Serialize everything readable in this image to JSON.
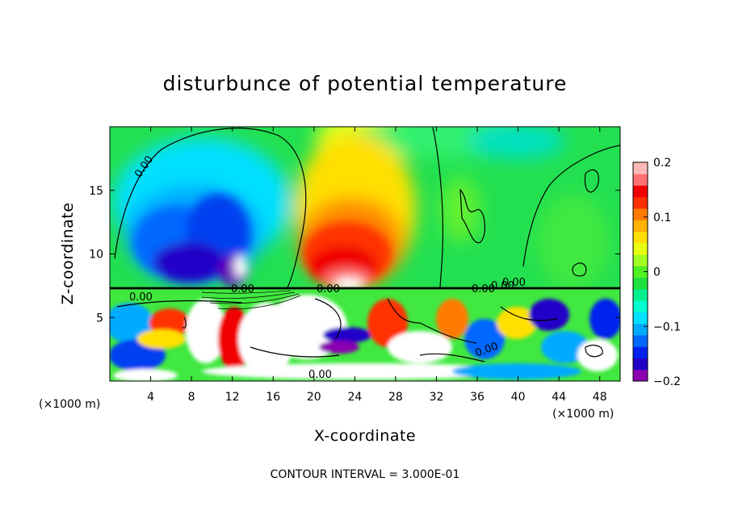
{
  "chart_data": {
    "type": "heatmap",
    "title": "disturbunce of potential temperature",
    "xlabel": "X-coordinate",
    "ylabel": "Z-coordinate",
    "x_unit_left": "(×1000 m)",
    "x_unit_right": "(×1000 m)",
    "xlim": [
      0,
      50
    ],
    "ylim": [
      0,
      20
    ],
    "x_ticks": [
      4,
      8,
      12,
      16,
      20,
      24,
      28,
      32,
      36,
      40,
      44,
      48
    ],
    "y_ticks": [
      5,
      10,
      15
    ],
    "colorbar": {
      "ticks": [
        0.2,
        0.1,
        0,
        -0.1,
        -0.2
      ],
      "tick_labels": [
        "0.2",
        "0.1",
        "0",
        "−0.1",
        "−0.2"
      ],
      "min": -0.2,
      "max": 0.2,
      "colors": [
        "#8a00b0",
        "#2200c8",
        "#0022ee",
        "#0068ff",
        "#00aaff",
        "#00e0ff",
        "#00ffd0",
        "#00f090",
        "#20e040",
        "#50f020",
        "#a0ff20",
        "#e8ff10",
        "#ffe000",
        "#ffb000",
        "#ff7a00",
        "#ff3000",
        "#f00000",
        "#ff7070",
        "#ffb8b8"
      ]
    },
    "contour_labels": [
      "0.00",
      "0.00",
      "0.00",
      "0.00",
      "0.00",
      "0.00",
      "0.00",
      "0.00",
      "0.00"
    ],
    "field_features": [
      {
        "x": 12,
        "z": 10,
        "value": -0.18
      },
      {
        "x": 9,
        "z": 13,
        "value": -0.12
      },
      {
        "x": 23,
        "z": 11,
        "value": 0.17
      },
      {
        "x": 22,
        "z": 17,
        "value": 0.08
      },
      {
        "x": 28,
        "z": 17,
        "value": 0.04
      },
      {
        "x": 40,
        "z": 18,
        "value": -0.02
      },
      {
        "x": 44,
        "z": 12,
        "value": 0.01
      }
    ],
    "footer": "CONTOUR INTERVAL = 3.000E-01"
  },
  "colors": {
    "background": "#22e050",
    "warm": "#ff3000",
    "cold": "#0022ee"
  }
}
